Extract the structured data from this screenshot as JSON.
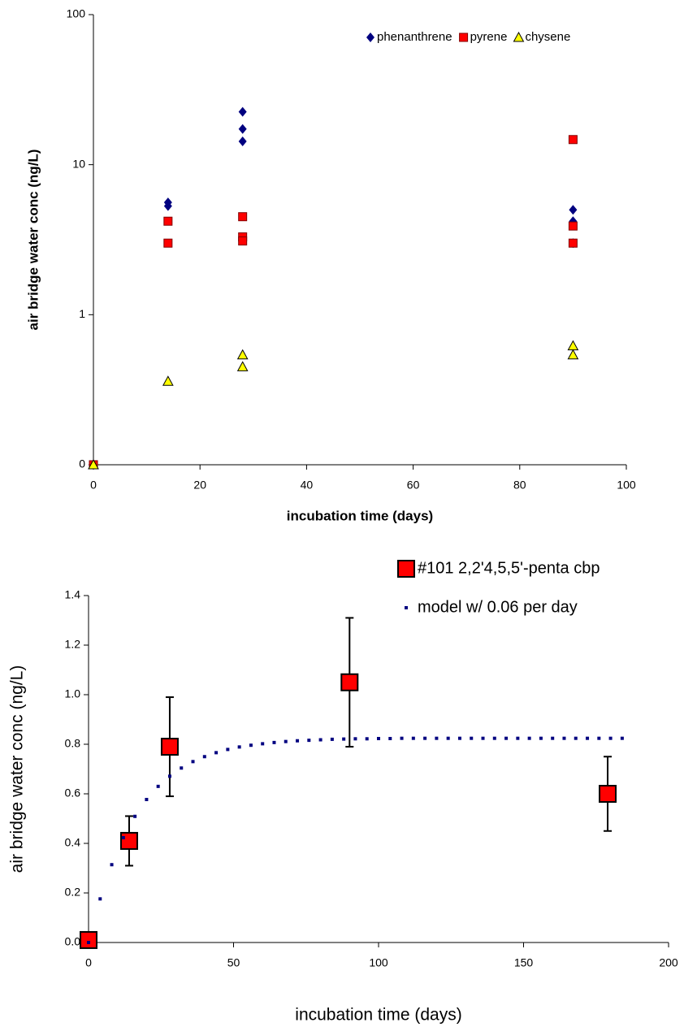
{
  "chart_data": [
    {
      "type": "scatter",
      "log_y": true,
      "legend": "top-right",
      "legend_layout": "horizontal",
      "xlabel": "incubation time (days)",
      "ylabel": "air bridge water conc (ng/L)",
      "xlim": [
        0,
        100
      ],
      "xticks": [
        0,
        20,
        40,
        60,
        80,
        100
      ],
      "ylim": [
        0.1,
        100
      ],
      "yticks": [
        {
          "value": 0.1,
          "label": "0"
        },
        1,
        10,
        100
      ],
      "series": [
        {
          "name": "phenanthrene",
          "color": "#000080",
          "marker": "diamond",
          "x": [
            0,
            14,
            14,
            28,
            28,
            28,
            90,
            90,
            90
          ],
          "values": [
            0.1,
            5.6,
            5.3,
            22.5,
            17.3,
            14.3,
            5.0,
            4.2,
            3.0
          ]
        },
        {
          "name": "pyrene",
          "color": "#ff0000",
          "marker": "square",
          "x": [
            0,
            14,
            14,
            28,
            28,
            28,
            90,
            90,
            90
          ],
          "values": [
            0.1,
            4.2,
            3.0,
            4.5,
            3.3,
            3.1,
            14.7,
            3.9,
            3.0
          ]
        },
        {
          "name": "chysene",
          "color": "#ffff00",
          "marker": "triangle",
          "x": [
            0,
            14,
            28,
            28,
            90,
            90
          ],
          "values": [
            0.1,
            0.36,
            0.54,
            0.45,
            0.62,
            0.54
          ]
        }
      ]
    },
    {
      "type": "scatter",
      "legend": "top-right",
      "legend_layout": "vertical",
      "xlabel": "incubation time (days)",
      "ylabel": "air bridge water conc (ng/L)",
      "xlim": [
        0,
        200
      ],
      "xticks": [
        0,
        50,
        100,
        150,
        200
      ],
      "ylim": [
        0,
        1.4
      ],
      "yticks": [
        {
          "value": 0,
          "label": "0.0"
        },
        0.2,
        0.4,
        0.6,
        0.8,
        {
          "value": 1,
          "label": "1.0"
        },
        1.2,
        1.4
      ],
      "series": [
        {
          "name": "#101  2,2'4,5,5'-penta cbp",
          "color": "#ff0000",
          "marker": "big-square",
          "x": [
            0,
            14,
            28,
            90,
            179
          ],
          "values": [
            0.01,
            0.41,
            0.79,
            1.05,
            0.6
          ],
          "errors": [
            0,
            0.1,
            0.2,
            0.26,
            0.15
          ]
        },
        {
          "name": "model w/ 0.06 per day",
          "color": "#000080",
          "marker": "dot",
          "x": [
            0,
            4,
            8,
            12,
            16,
            20,
            24,
            28,
            32,
            36,
            40,
            44,
            48,
            52,
            56,
            60,
            64,
            68,
            72,
            76,
            80,
            84,
            88,
            92,
            96,
            100,
            104,
            108,
            112,
            116,
            120,
            124,
            128,
            132,
            136,
            140,
            144,
            148,
            152,
            156,
            160,
            164,
            168,
            172,
            176,
            180,
            184
          ],
          "values": [
            0,
            0.176,
            0.314,
            0.423,
            0.509,
            0.577,
            0.63,
            0.671,
            0.704,
            0.73,
            0.75,
            0.766,
            0.779,
            0.789,
            0.796,
            0.802,
            0.807,
            0.811,
            0.814,
            0.816,
            0.818,
            0.82,
            0.821,
            0.822,
            0.822,
            0.823,
            0.823,
            0.824,
            0.824,
            0.824,
            0.824,
            0.824,
            0.824,
            0.824,
            0.824,
            0.824,
            0.824,
            0.824,
            0.824,
            0.824,
            0.824,
            0.824,
            0.824,
            0.824,
            0.824,
            0.824,
            0.824
          ]
        }
      ]
    }
  ]
}
